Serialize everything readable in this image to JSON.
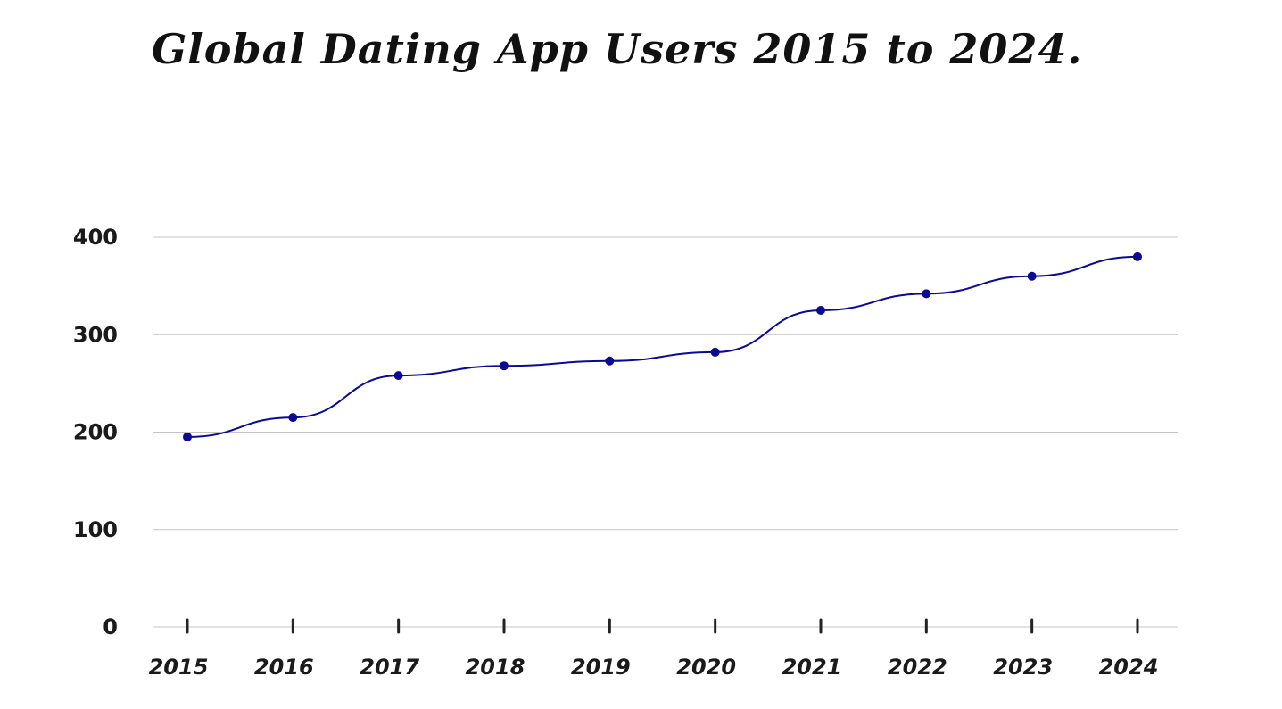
{
  "chart_data": {
    "type": "line",
    "title": "Global Dating App Users 2015 to 2024.",
    "xlabel": "",
    "ylabel": "",
    "categories": [
      "2015",
      "2016",
      "2017",
      "2018",
      "2019",
      "2020",
      "2021",
      "2022",
      "2023",
      "2024"
    ],
    "series": [
      {
        "values": [
          195,
          215,
          258,
          268,
          273,
          282,
          325,
          342,
          360,
          380
        ]
      }
    ],
    "ylim": [
      0,
      400
    ],
    "yticks": [
      "0",
      "100",
      "200",
      "300",
      "400"
    ],
    "grid": true,
    "legend": "none",
    "colors": {
      "line": "#0a0a96",
      "grid": "#c4c4c4",
      "text": "#1a1a1a"
    }
  }
}
